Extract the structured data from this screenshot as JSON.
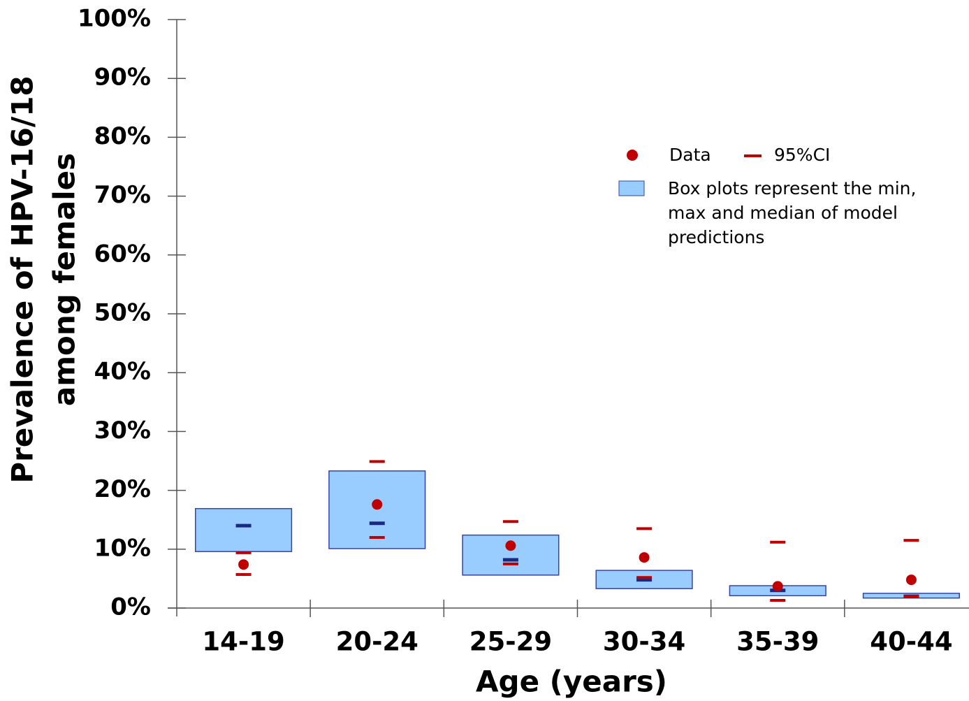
{
  "chart_data": {
    "type": "box",
    "y_label": [
      "Prevalence of HPV-16/18",
      "among females"
    ],
    "x_label": "Age (years)",
    "categories": [
      "14-19",
      "20-24",
      "25-29",
      "30-34",
      "35-39",
      "40-44"
    ],
    "ylim": [
      0,
      100
    ],
    "yticks": [
      {
        "value": 0,
        "label": "0%"
      },
      {
        "value": 10,
        "label": "10%"
      },
      {
        "value": 20,
        "label": "20%"
      },
      {
        "value": 30,
        "label": "30%"
      },
      {
        "value": 40,
        "label": "40%"
      },
      {
        "value": 50,
        "label": "50%"
      },
      {
        "value": 60,
        "label": "60%"
      },
      {
        "value": 70,
        "label": "70%"
      },
      {
        "value": 80,
        "label": "80%"
      },
      {
        "value": 90,
        "label": "90%"
      },
      {
        "value": 100,
        "label": "100%"
      }
    ],
    "series": [
      {
        "name": "Data",
        "color": "#c00000",
        "values": [
          7.4,
          17.6,
          10.6,
          8.6,
          3.7,
          4.8
        ]
      },
      {
        "name": "95%CI",
        "color": "#c00000",
        "lower": [
          5.7,
          12.0,
          7.5,
          5.2,
          1.3,
          2.0
        ],
        "upper": [
          9.4,
          24.9,
          14.7,
          13.5,
          11.2,
          11.5
        ]
      },
      {
        "name": "Box plots represent the min, max and median of model predictions",
        "color": "#99ccff",
        "edge_color": "#3344aa",
        "median_color": "#1a2a80",
        "min": [
          9.6,
          10.1,
          5.6,
          3.3,
          2.1,
          1.7
        ],
        "max": [
          16.9,
          23.3,
          12.4,
          6.4,
          3.8,
          2.5
        ],
        "median": [
          14.0,
          14.4,
          8.2,
          4.8,
          3.0,
          2.0
        ]
      }
    ]
  }
}
